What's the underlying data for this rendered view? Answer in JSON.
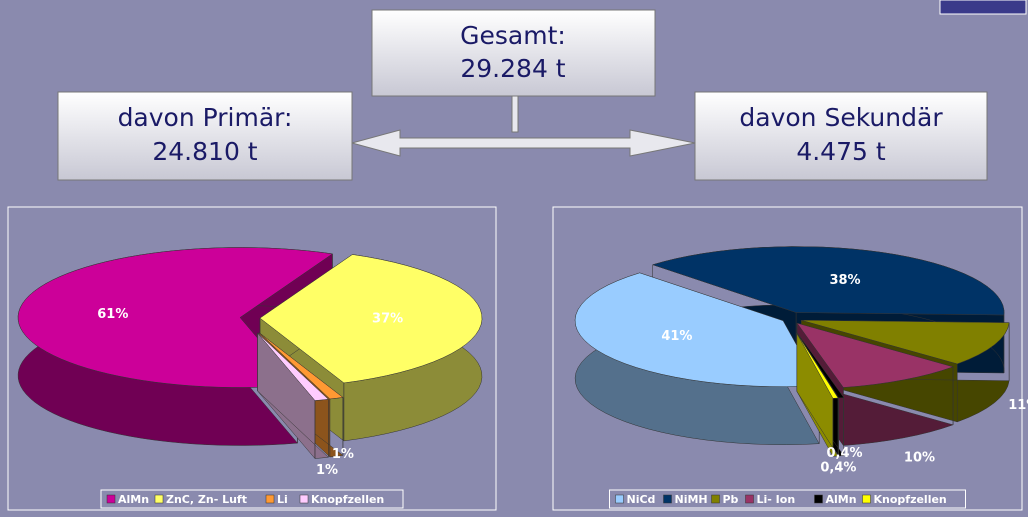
{
  "overview": {
    "total": {
      "label": "Gesamt:",
      "value": "29.284 t"
    },
    "primary": {
      "label": "davon Primär:",
      "value": "24.810 t"
    },
    "secondary": {
      "label": "davon Sekundär",
      "value": "4.475 t"
    }
  },
  "chart_data": [
    {
      "type": "pie",
      "categories": [
        "AlMn",
        "ZnC, Zn- Luft",
        "Li",
        "Knopfzellen"
      ],
      "values": [
        61,
        37,
        1,
        1
      ],
      "value_labels": [
        "61%",
        "37%",
        "1%",
        "1%"
      ],
      "colors": [
        "#cc0099",
        "#ffff66",
        "#ff9933",
        "#ffccff"
      ],
      "legend": "bottom"
    },
    {
      "type": "pie",
      "categories": [
        "NiCd",
        "NiMH",
        "Pb",
        "Li- Ion",
        "AlMn",
        "Knopfzellen"
      ],
      "values": [
        41,
        38,
        11,
        10,
        0.4,
        0.4
      ],
      "value_labels": [
        "41%",
        "38%",
        "11%",
        "10%",
        "0,4%",
        "0,4%"
      ],
      "colors": [
        "#99ccff",
        "#003366",
        "#808000",
        "#993366",
        "#000000",
        "#ffff00"
      ],
      "legend": "bottom"
    }
  ]
}
